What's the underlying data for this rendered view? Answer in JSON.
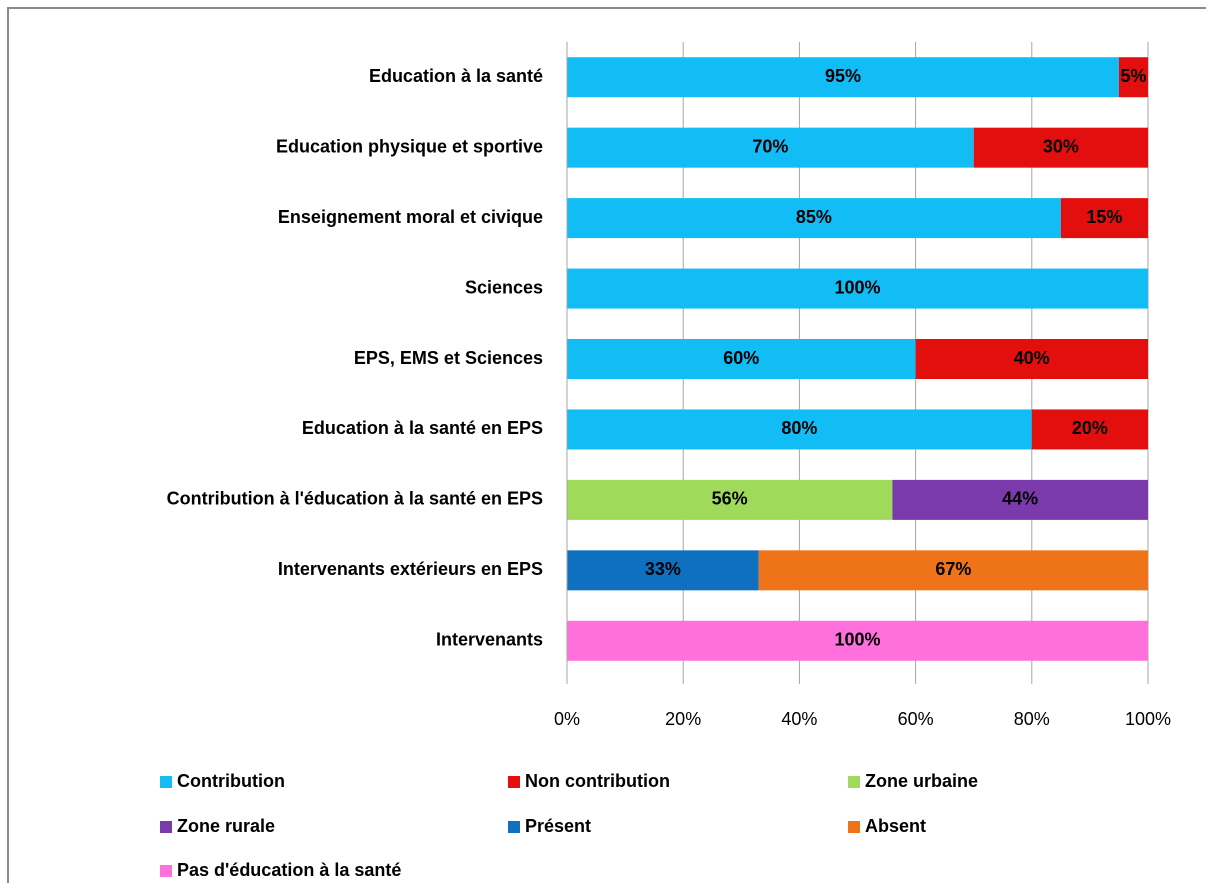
{
  "chart_data": {
    "type": "stacked_bar_horizontal",
    "categories": [
      "Education à la santé",
      "Education physique et sportive",
      "Enseignement moral et civique",
      "Sciences",
      "EPS, EMS et Sciences",
      "Education à la santé en EPS",
      "Contribution à l'éducation à la santé en EPS",
      "Intervenants extérieurs en EPS",
      "Intervenants"
    ],
    "series": [
      {
        "name": "Contribution",
        "color": "#12bcf4",
        "values": [
          95,
          70,
          85,
          100,
          60,
          80,
          null,
          null,
          null
        ],
        "value_labels": [
          "95%",
          "70%",
          "85%",
          "100%",
          "60%",
          "80%",
          null,
          null,
          null
        ]
      },
      {
        "name": "Non contribution",
        "color": "#e30f0f",
        "values": [
          5,
          30,
          15,
          null,
          40,
          20,
          null,
          null,
          null
        ],
        "value_labels": [
          "5%",
          "30%",
          "15%",
          null,
          "40%",
          "20%",
          null,
          null,
          null
        ]
      },
      {
        "name": "Zone urbaine",
        "color": "#a0da5a",
        "values": [
          null,
          null,
          null,
          null,
          null,
          null,
          56,
          null,
          null
        ],
        "value_labels": [
          null,
          null,
          null,
          null,
          null,
          null,
          "56%",
          null,
          null
        ]
      },
      {
        "name": "Zone rurale",
        "color": "#7b3aab",
        "values": [
          null,
          null,
          null,
          null,
          null,
          null,
          44,
          null,
          null
        ],
        "value_labels": [
          null,
          null,
          null,
          null,
          null,
          null,
          "44%",
          null,
          null
        ]
      },
      {
        "name": "Présent",
        "color": "#0f70c2",
        "values": [
          null,
          null,
          null,
          null,
          null,
          null,
          null,
          33,
          null
        ],
        "value_labels": [
          null,
          null,
          null,
          null,
          null,
          null,
          null,
          "33%",
          null
        ]
      },
      {
        "name": "Absent",
        "color": "#ef7419",
        "values": [
          null,
          null,
          null,
          null,
          null,
          null,
          null,
          67,
          null
        ],
        "value_labels": [
          null,
          null,
          null,
          null,
          null,
          null,
          null,
          "67%",
          null
        ]
      },
      {
        "name": "Pas d'éducation à la santé",
        "color": "#ff70dc",
        "values": [
          null,
          null,
          null,
          null,
          null,
          null,
          null,
          null,
          100
        ],
        "value_labels": [
          null,
          null,
          null,
          null,
          null,
          null,
          null,
          null,
          "100%"
        ]
      }
    ],
    "xlim": [
      0,
      100
    ],
    "xticks": [
      {
        "value": 0,
        "label": "0%"
      },
      {
        "value": 20,
        "label": "20%"
      },
      {
        "value": 40,
        "label": "40%"
      },
      {
        "value": 60,
        "label": "60%"
      },
      {
        "value": 80,
        "label": "80%"
      },
      {
        "value": 100,
        "label": "100%"
      }
    ],
    "grid": true
  }
}
